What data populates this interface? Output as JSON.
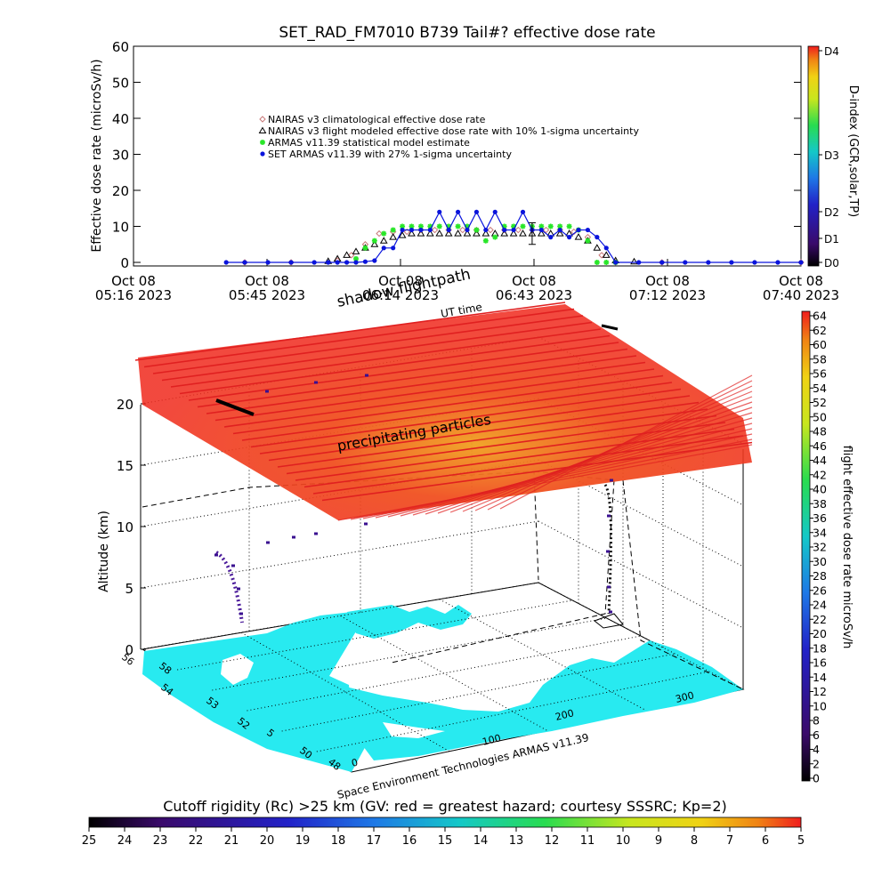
{
  "page": {
    "title": "SET_RAD_FM7010   B739 Tail#? effective dose rate",
    "credit": "Space Environment Technologies ARMAS v11.39"
  },
  "colors": {
    "nairas_clim": "#c87878",
    "nairas_flight": "#000000",
    "armas_model": "#28e628",
    "set_armas": "#0a14dc",
    "curtain": "#e02020",
    "ocean": "#ffffff",
    "land": "#28eaf0"
  },
  "chart_data": [
    {
      "type": "scatter",
      "title": "SET_RAD_FM7010   B739 Tail#? effective dose rate",
      "ylabel": "Effective dose rate (microSv/h)",
      "ylim": [
        0,
        60
      ],
      "yticks": [
        "0",
        "10",
        "20",
        "30",
        "40",
        "50",
        "60"
      ],
      "xticks": [
        {
          "date": "Oct 08",
          "time": "05:16 2023"
        },
        {
          "date": "Oct 08",
          "time": "05:45 2023"
        },
        {
          "date": "Oct 08",
          "time": "06:14 2023"
        },
        {
          "date": "Oct 08",
          "time": "06:43 2023"
        },
        {
          "date": "Oct 08",
          "time": "07:12 2023"
        },
        {
          "date": "Oct 08",
          "time": "07:40 2023"
        }
      ],
      "xlim": [
        "05:16",
        "07:40"
      ],
      "legend_position": "top-left",
      "series": [
        {
          "name": "NAIRAS v3 climatological effective dose rate",
          "marker": "diamond",
          "x": [
            "05:40",
            "05:50",
            "06:00",
            "06:03",
            "06:06",
            "06:09",
            "06:12",
            "06:15",
            "06:18",
            "06:21",
            "06:24",
            "06:27",
            "06:30",
            "06:33",
            "06:36",
            "06:39",
            "06:42",
            "06:45",
            "06:48",
            "06:51",
            "06:54",
            "06:57",
            "07:00",
            "07:10",
            "07:40"
          ],
          "y": [
            0,
            0,
            0.5,
            2,
            5,
            8,
            8.5,
            8.5,
            9,
            9,
            9,
            9,
            9,
            9,
            9,
            9,
            9,
            9,
            9,
            8.5,
            7,
            2,
            0,
            0,
            0
          ]
        },
        {
          "name": "NAIRAS v3 flight modeled effective dose rate with 10% 1-sigma uncertainty",
          "marker": "triangle",
          "x": [
            "05:58",
            "06:00",
            "06:02",
            "06:04",
            "06:06",
            "06:08",
            "06:10",
            "06:12",
            "06:14",
            "06:16",
            "06:18",
            "06:20",
            "06:22",
            "06:24",
            "06:26",
            "06:28",
            "06:30",
            "06:32",
            "06:34",
            "06:36",
            "06:38",
            "06:40",
            "06:42",
            "06:44",
            "06:46",
            "06:48",
            "06:50",
            "06:52",
            "06:54",
            "06:56",
            "06:58",
            "07:00",
            "07:04"
          ],
          "y": [
            0.3,
            1,
            2,
            3,
            4,
            5,
            6,
            7,
            7.5,
            8,
            8,
            8,
            8,
            8,
            8,
            8,
            8,
            8,
            8,
            8,
            8,
            8,
            8,
            8,
            8,
            8,
            8,
            7,
            6,
            4,
            2,
            0.5,
            0.2
          ]
        },
        {
          "name": "ARMAS v11.39 statistical model estimate",
          "marker": "asterisk",
          "x": [
            "06:04",
            "06:06",
            "06:08",
            "06:10",
            "06:12",
            "06:14",
            "06:16",
            "06:18",
            "06:20",
            "06:22",
            "06:24",
            "06:26",
            "06:28",
            "06:30",
            "06:32",
            "06:34",
            "06:36",
            "06:38",
            "06:40",
            "06:42",
            "06:44",
            "06:46",
            "06:48",
            "06:50",
            "06:52",
            "06:54",
            "06:56",
            "06:58",
            "07:00"
          ],
          "y": [
            1,
            4,
            6,
            8,
            9,
            10,
            10,
            10,
            10,
            10,
            10,
            10,
            10,
            9,
            6,
            7,
            10,
            10,
            10,
            10,
            10,
            10,
            10,
            10,
            9,
            6,
            0,
            0,
            0
          ]
        },
        {
          "name": "SET ARMAS v11.39 with 27% 1-sigma uncertainty",
          "marker": "filled-circle",
          "x": [
            "05:36",
            "05:40",
            "05:45",
            "05:50",
            "05:55",
            "05:58",
            "06:00",
            "06:02",
            "06:04",
            "06:06",
            "06:08",
            "06:10",
            "06:12",
            "06:14",
            "06:16",
            "06:18",
            "06:20",
            "06:22",
            "06:24",
            "06:26",
            "06:28",
            "06:30",
            "06:32",
            "06:34",
            "06:36",
            "06:38",
            "06:40",
            "06:42",
            "06:44",
            "06:46",
            "06:48",
            "06:50",
            "06:52",
            "06:54",
            "06:56",
            "06:58",
            "07:00",
            "07:05",
            "07:10",
            "07:15",
            "07:20",
            "07:25",
            "07:30",
            "07:35",
            "07:40"
          ],
          "y": [
            0,
            0,
            0,
            0,
            0,
            0,
            0,
            0,
            0,
            0.2,
            0.5,
            4,
            4,
            9,
            9,
            9,
            9,
            14,
            9,
            14,
            9,
            14,
            9,
            14,
            9,
            9,
            14,
            9,
            9,
            7,
            9,
            7,
            9,
            9,
            7,
            4,
            0,
            0,
            0,
            0,
            0,
            0,
            0,
            0,
            0
          ]
        }
      ],
      "errorbar": {
        "x": "06:42",
        "y": 8,
        "sigma": 3
      }
    },
    {
      "type": "3d-flightpath",
      "labels": {
        "shadow": "shadow flightpath",
        "ut_time": "UT time",
        "precip": "precipitating particles",
        "zlabel": "Altitude (km)"
      },
      "zlim": [
        0,
        20
      ],
      "zticks": [
        "0",
        "5",
        "10",
        "15",
        "20"
      ],
      "lat_ticks": [
        "56",
        "58",
        "54",
        "53",
        "52",
        "5",
        "50",
        "48"
      ],
      "lon_ticks": [
        "0",
        "100",
        "200",
        "300"
      ],
      "colorbar": {
        "label": "flight effective dose rate microSv/h",
        "ticks": [
          "0",
          "2",
          "4",
          "6",
          "8",
          "10",
          "12",
          "14",
          "16",
          "18",
          "20",
          "22",
          "24",
          "26",
          "28",
          "30",
          "32",
          "34",
          "36",
          "38",
          "40",
          "42",
          "44",
          "46",
          "48",
          "50",
          "52",
          "54",
          "56",
          "58",
          "60",
          "62",
          "64"
        ]
      }
    }
  ],
  "dindex_bar": {
    "label": "D-index (GCR,solar,TP)",
    "ticks": [
      {
        "label": "D4",
        "value": 4
      },
      {
        "label": "D3",
        "value": 3
      },
      {
        "label": "D2",
        "value": 2
      },
      {
        "label": "D1",
        "value": 1
      },
      {
        "label": "D0",
        "value": 0
      }
    ]
  },
  "rigidity_bar": {
    "title": "Cutoff rigidity (Rc) >25 km (GV: red = greatest hazard; courtesy SSSRC; Kp=2)",
    "ticks": [
      "25",
      "24",
      "23",
      "22",
      "21",
      "20",
      "19",
      "18",
      "17",
      "16",
      "15",
      "14",
      "13",
      "12",
      "11",
      "10",
      "9",
      "8",
      "7",
      "6",
      "5"
    ]
  }
}
